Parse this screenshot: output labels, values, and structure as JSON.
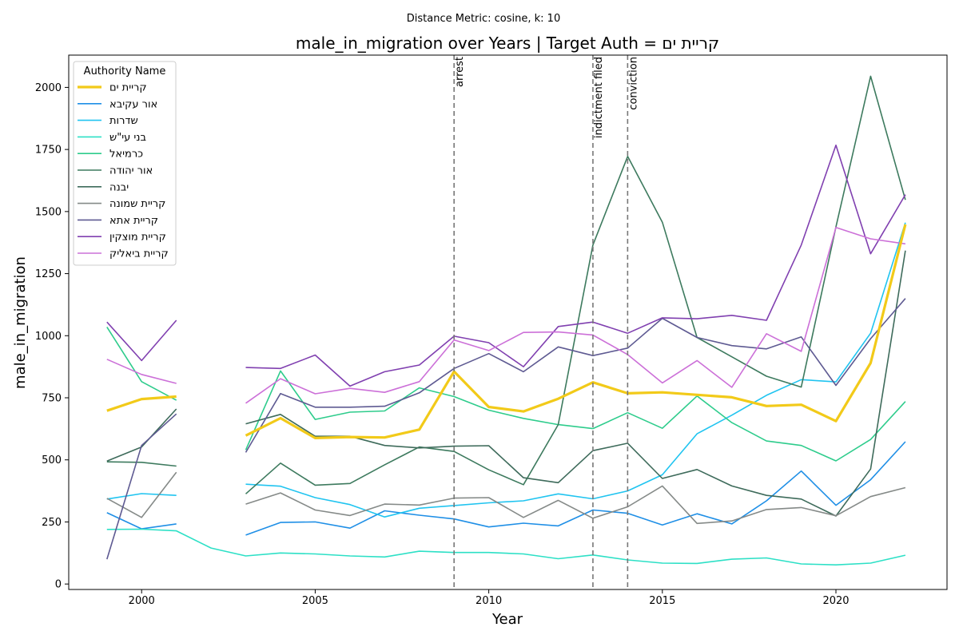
{
  "chart_data": {
    "type": "line",
    "suptitle": "Distance Metric: cosine, k: 10",
    "title": "male_in_migration over Years | Target Auth = קריית ים",
    "xlabel": "Year",
    "ylabel": "male_in_migration",
    "xlim": [
      1997.9,
      2023.2
    ],
    "ylim": [
      -22,
      2130
    ],
    "x_ticks": [
      2000,
      2005,
      2010,
      2015,
      2020
    ],
    "y_ticks": [
      0,
      250,
      500,
      750,
      1000,
      1250,
      1500,
      1750,
      2000
    ],
    "grid": false,
    "legend": {
      "title": "Authority Name",
      "position": "top-left"
    },
    "events": [
      {
        "year": 2009,
        "label": "arrest"
      },
      {
        "year": 2013,
        "label": "indictment filed"
      },
      {
        "year": 2014,
        "label": "conviction"
      }
    ],
    "years": [
      1999,
      2000,
      2001,
      2002,
      2003,
      2004,
      2005,
      2006,
      2007,
      2008,
      2009,
      2010,
      2011,
      2012,
      2013,
      2014,
      2015,
      2016,
      2017,
      2018,
      2019,
      2020,
      2021,
      2022
    ],
    "series": [
      {
        "name": "קריית ים",
        "color": "#f2ca19",
        "target": true,
        "values": [
          698,
          745,
          755,
          null,
          598,
          668,
          588,
          592,
          590,
          622,
          856,
          713,
          695,
          746,
          812,
          768,
          772,
          762,
          752,
          717,
          722,
          656,
          890,
          1448
        ]
      },
      {
        "name": "אור עקיבא",
        "color": "#1f8fe6",
        "values": [
          287,
          222,
          242,
          null,
          197,
          248,
          250,
          225,
          295,
          277,
          262,
          230,
          245,
          234,
          298,
          285,
          238,
          283,
          242,
          335,
          455,
          317,
          420,
          573
        ]
      },
      {
        "name": "שדרות",
        "color": "#20c4f0",
        "values": [
          342,
          364,
          357,
          null,
          402,
          394,
          348,
          320,
          270,
          305,
          316,
          327,
          335,
          363,
          343,
          375,
          440,
          605,
          680,
          760,
          823,
          814,
          1010,
          1455
        ]
      },
      {
        "name": "בני עי\"ש",
        "color": "#2de0c6",
        "values": [
          220,
          221,
          214,
          145,
          113,
          125,
          121,
          113,
          109,
          132,
          127,
          127,
          121,
          102,
          117,
          97,
          84,
          83,
          100,
          105,
          81,
          77,
          84,
          116
        ]
      },
      {
        "name": "כרמיאל",
        "color": "#2ecc8c",
        "values": [
          1035,
          815,
          740,
          null,
          540,
          858,
          663,
          692,
          697,
          790,
          755,
          700,
          667,
          642,
          626,
          690,
          627,
          757,
          650,
          576,
          558,
          496,
          582,
          735
        ]
      },
      {
        "name": "אור יהודה",
        "color": "#3d7a5e",
        "values": [
          492,
          490,
          475,
          null,
          363,
          487,
          398,
          405,
          480,
          552,
          534,
          460,
          400,
          642,
          1365,
          1722,
          1457,
          993,
          915,
          837,
          793,
          1438,
          2045,
          1547
        ]
      },
      {
        "name": "יבנה",
        "color": "#3e6b5b",
        "values": [
          495,
          552,
          705,
          null,
          645,
          683,
          595,
          595,
          558,
          548,
          555,
          557,
          428,
          408,
          537,
          567,
          425,
          461,
          395,
          357,
          342,
          274,
          463,
          1343
        ]
      },
      {
        "name": "קריית שמונה",
        "color": "#858a88",
        "values": [
          345,
          268,
          450,
          null,
          322,
          367,
          298,
          276,
          322,
          318,
          346,
          348,
          268,
          337,
          265,
          311,
          395,
          244,
          254,
          300,
          308,
          275,
          352,
          388
        ]
      },
      {
        "name": "קריית אתא",
        "color": "#5e5a92",
        "values": [
          100,
          558,
          685,
          null,
          530,
          767,
          712,
          712,
          716,
          770,
          868,
          928,
          855,
          955,
          920,
          950,
          1070,
          993,
          960,
          947,
          995,
          800,
          988,
          1150
        ]
      },
      {
        "name": "קריית מוצקין",
        "color": "#8040b0",
        "values": [
          1055,
          900,
          1062,
          null,
          872,
          868,
          922,
          797,
          855,
          882,
          998,
          972,
          875,
          1037,
          1055,
          1010,
          1072,
          1068,
          1082,
          1062,
          1365,
          1767,
          1330,
          1568
        ]
      },
      {
        "name": "קריית ביאליק",
        "color": "#cc70d8",
        "values": [
          905,
          844,
          808,
          null,
          728,
          827,
          766,
          788,
          772,
          815,
          983,
          940,
          1013,
          1015,
          1003,
          924,
          810,
          900,
          792,
          1008,
          937,
          1436,
          1390,
          1370
        ]
      }
    ]
  }
}
